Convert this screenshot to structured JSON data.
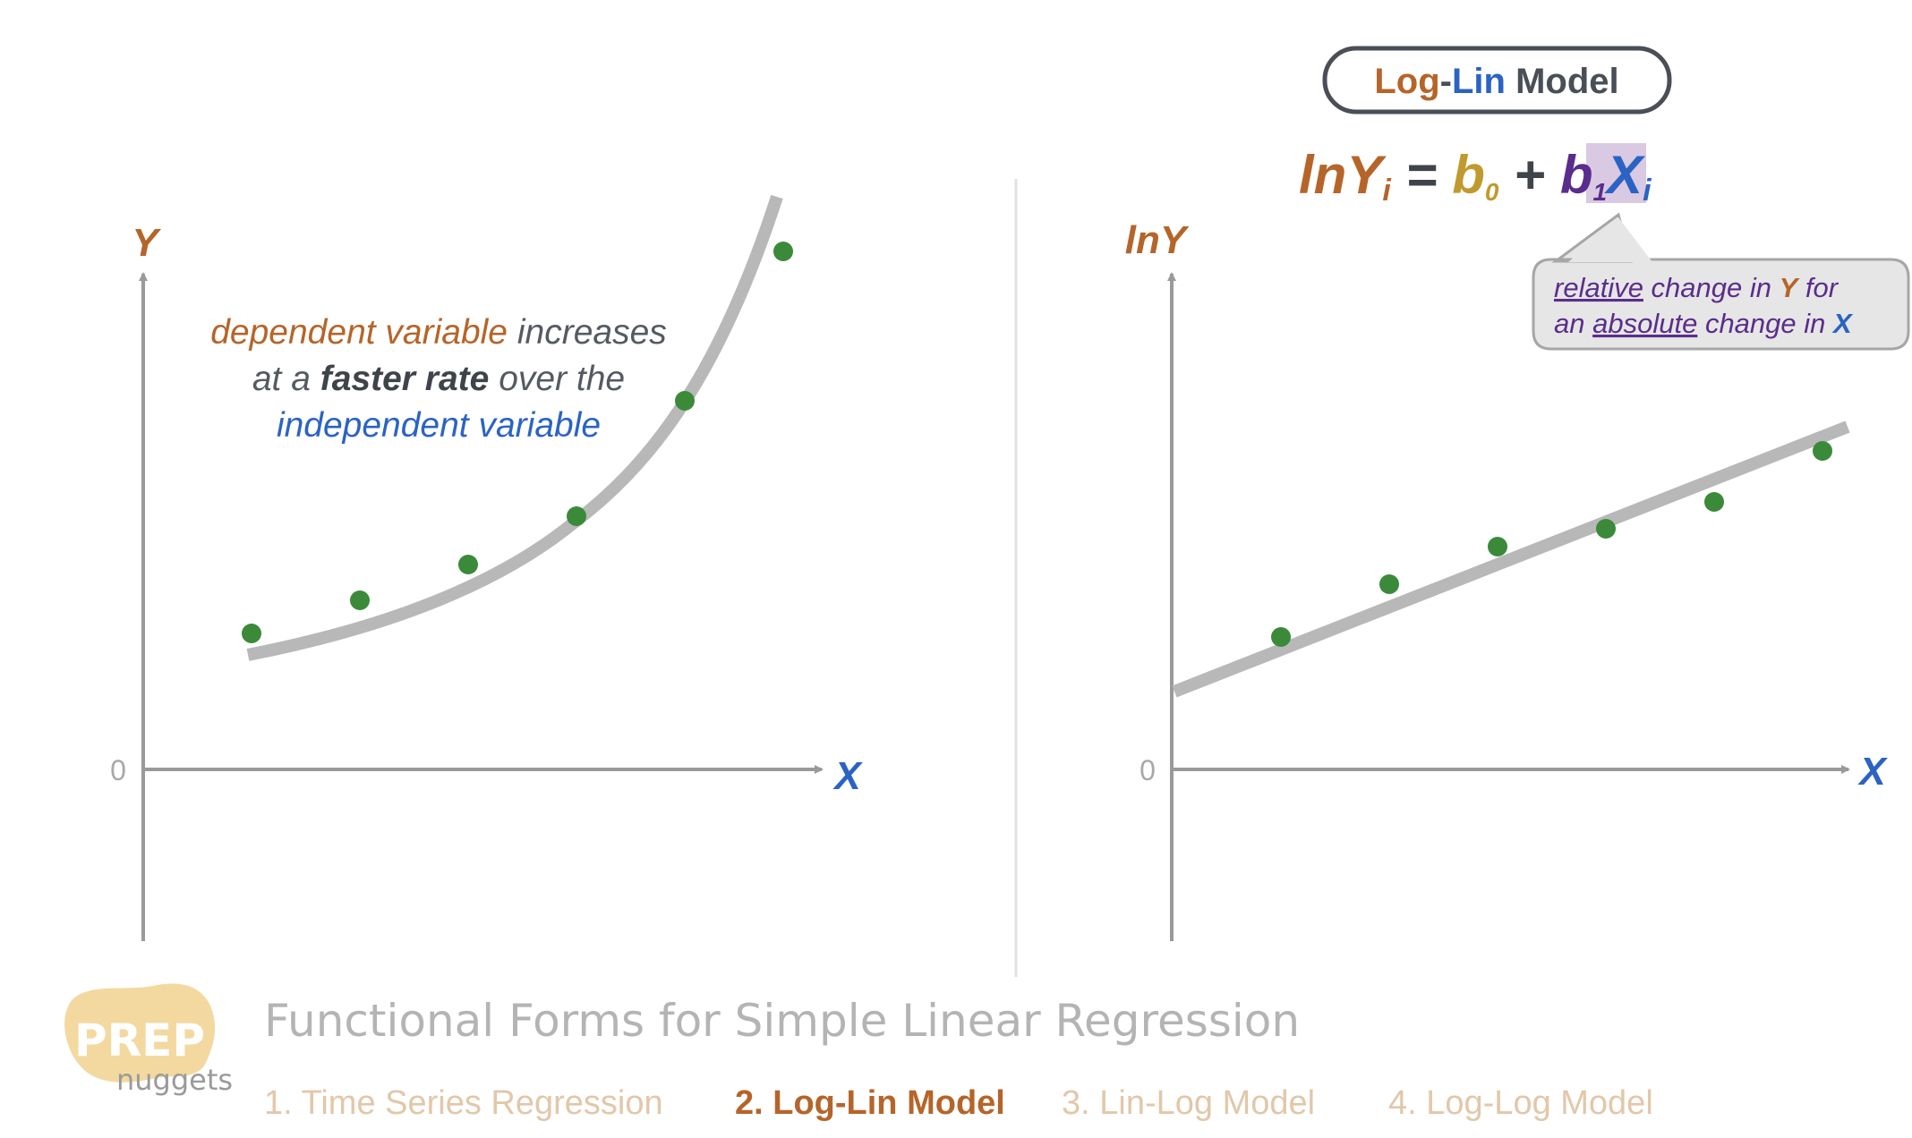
{
  "left_chart": {
    "y_label": "Y",
    "x_label": "X",
    "zero_label": "0",
    "annotation": {
      "line1_a": "dependent variable",
      "line1_b": " increases",
      "line2_a": "at a ",
      "line2_b": "faster rate",
      "line2_c": " over the",
      "line3": "independent variable"
    }
  },
  "right_chart": {
    "y_label": "lnY",
    "x_label": "X",
    "zero_label": "0"
  },
  "model_badge": {
    "part1": "Log",
    "sep": "-",
    "part2": "Lin",
    "part3": " Model"
  },
  "equation": {
    "lhs": "lnY",
    "lhs_sub": "i",
    "equals": " = ",
    "b0": "b",
    "b0_sub": "0",
    "plus": " + ",
    "b1": "b",
    "b1_sub": "1",
    "x": "X",
    "x_sub": "i"
  },
  "callout": {
    "line1_a": "relative",
    "line1_b": " change in ",
    "line1_c": "Y",
    "line1_d": " for",
    "line2_a": "an ",
    "line2_b": "absolute",
    "line2_c": " change in ",
    "line2_d": "X"
  },
  "footer": {
    "logo_top": "PREP",
    "logo_bottom": "nuggets",
    "title": "Functional Forms for Simple Linear Regression",
    "nav": [
      "1. Time Series Regression",
      "2. Log-Lin Model",
      "3. Lin-Log Model",
      "4. Log-Log Model"
    ],
    "active_index": 1
  },
  "colors": {
    "orange": "#b5652a",
    "blue": "#2b63c4",
    "gold": "#c09a2e",
    "purple": "#5a2d8c",
    "green": "#3a8a3a",
    "gray_dark": "#4a4f57",
    "curve": "#b8b8b8",
    "axis": "#9a9a9a",
    "nav_inactive": "#e2c7a9",
    "title_gray": "#b4b4b4"
  }
}
